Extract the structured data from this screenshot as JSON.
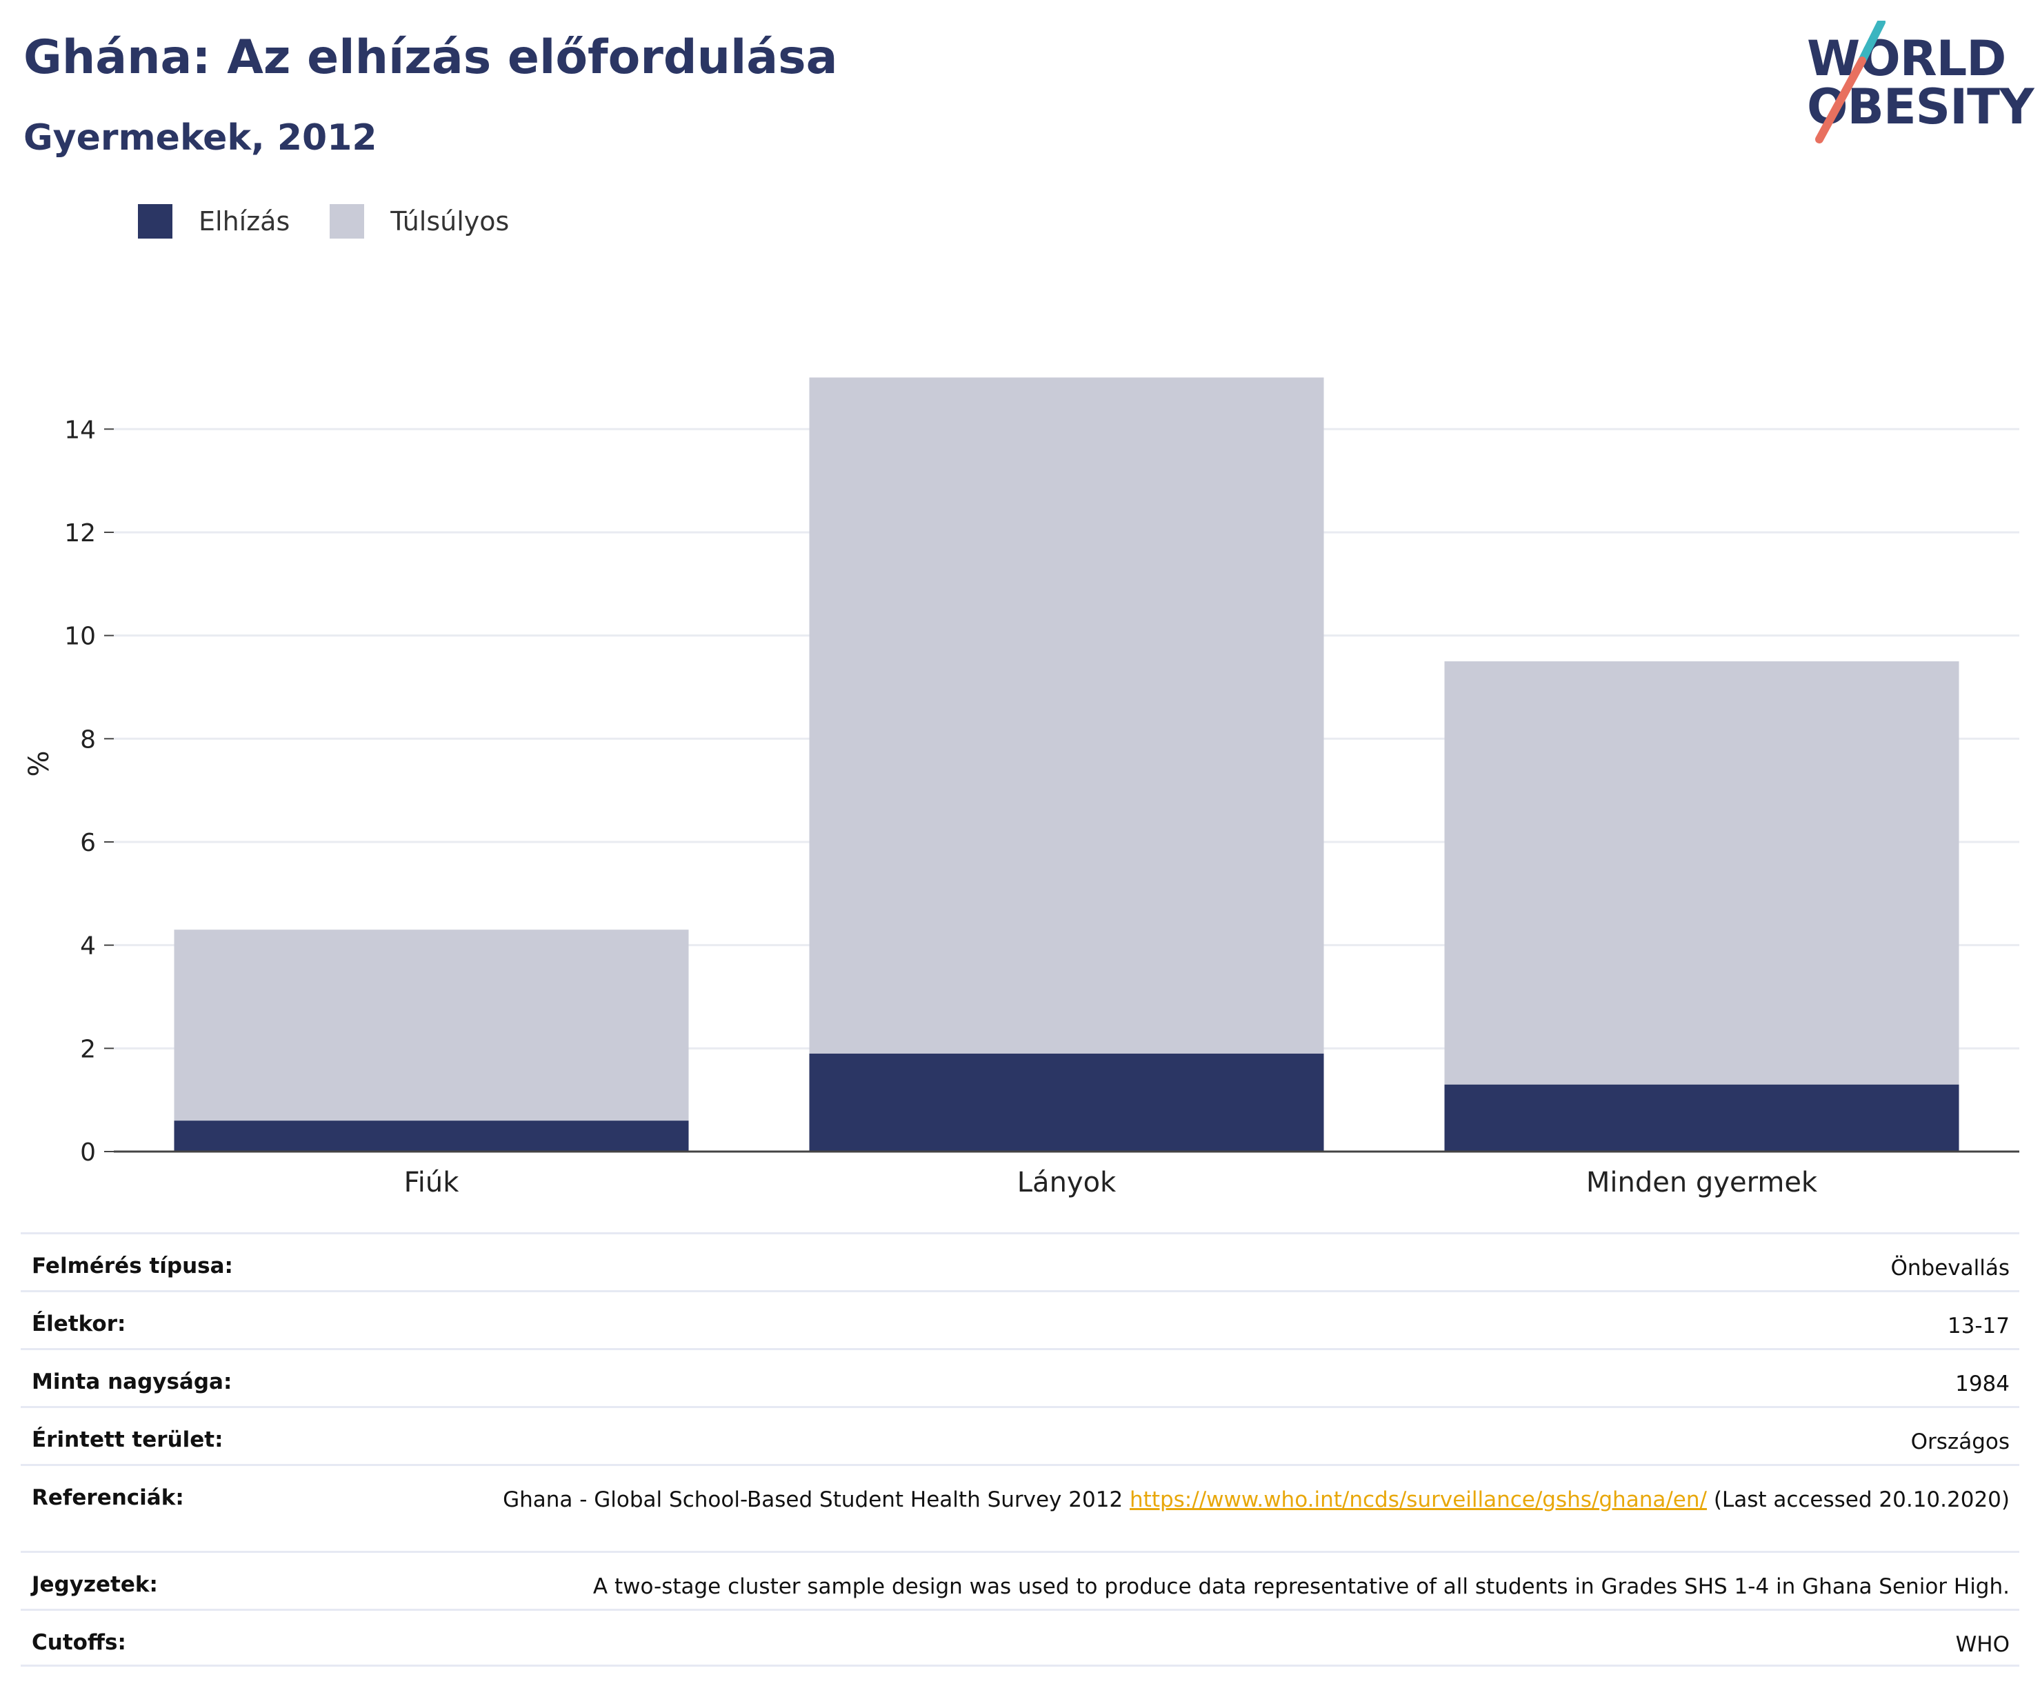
{
  "header": {
    "title": "Ghána: Az elhízás előfordulása",
    "subtitle": "Gyermekek, 2012"
  },
  "logo": {
    "line1": "WORLD",
    "line2": "OBESITY",
    "colors": {
      "text": "#2b3664",
      "slash_top": "#3bb5c0",
      "slash_bottom": "#e8705f"
    }
  },
  "legend": [
    {
      "label": "Elhízás",
      "color": "#2b3664"
    },
    {
      "label": "Túlsúlyos",
      "color": "#c9cbd7"
    }
  ],
  "chart_data": {
    "type": "bar",
    "stacked": true,
    "categories": [
      "Fiúk",
      "Lányok",
      "Minden gyermek"
    ],
    "series": [
      {
        "name": "Elhízás",
        "color": "#2b3664",
        "values": [
          0.6,
          1.9,
          1.3
        ]
      },
      {
        "name": "Túlsúlyos",
        "color": "#c9cbd7",
        "values": [
          3.7,
          13.1,
          8.2
        ]
      }
    ],
    "ylabel": "%",
    "yticks": [
      0,
      2,
      4,
      6,
      8,
      10,
      12,
      14
    ],
    "ylim": [
      0,
      15.3
    ],
    "grid": true,
    "legend_position": "top-left"
  },
  "meta": {
    "rows": [
      {
        "label": "Felmérés típusa:",
        "value": "Önbevallás"
      },
      {
        "label": "Életkor:",
        "value": "13-17"
      },
      {
        "label": "Minta nagysága:",
        "value": "1984"
      },
      {
        "label": "Érintett terület:",
        "value": "Országos"
      },
      {
        "label": "Referenciák:",
        "value": "Ghana - Global School-Based Student Health Survey 2012",
        "link": "https://www.who.int/ncds/surveillance/gshs/ghana/en/",
        "suffix": "(Last accessed 20.10.2020)"
      },
      {
        "label": "Jegyzetek:",
        "value": "A two-stage cluster sample design was used to produce data representative of all students in Grades SHS 1-4 in Ghana Senior High."
      },
      {
        "label": "Cutoffs:",
        "value": "WHO"
      }
    ]
  }
}
